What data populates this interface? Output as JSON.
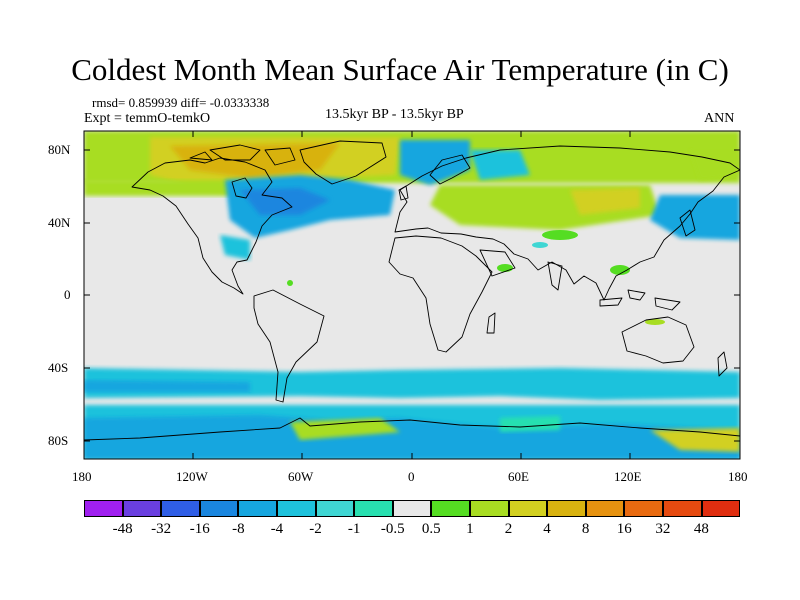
{
  "title": "Coldest Month Mean Surface Air Temperature (in C)",
  "stats": "rmsd= 0.859939 diff= -0.0333338",
  "expt": "Expt = temmO-temkO",
  "period": "13.5kyr BP - 13.5kyr BP",
  "season": "ANN",
  "lat_ticks": [
    "80N",
    "40N",
    "0",
    "40S",
    "80S"
  ],
  "lon_ticks": [
    "180",
    "120W",
    "60W",
    "0",
    "60E",
    "120E",
    "180"
  ],
  "legend": {
    "labels": [
      "-48",
      "-32",
      "-16",
      "-8",
      "-4",
      "-2",
      "-1",
      "-0.5",
      "0.5",
      "1",
      "2",
      "4",
      "8",
      "16",
      "32",
      "48"
    ],
    "colors": [
      "#a020f0",
      "#6a3fe0",
      "#2f5ee6",
      "#1a86df",
      "#16a6df",
      "#1ec2dc",
      "#3fd6d3",
      "#28e0b0",
      "#e8e8e8",
      "#55dd22",
      "#a8dd22",
      "#d2d020",
      "#d8b210",
      "#e69210",
      "#e86a10",
      "#e64a10",
      "#e02e10"
    ]
  },
  "chart_data": {
    "type": "heatmap",
    "title": "Coldest Month Mean Surface Air Temperature (in C)",
    "xlim": [
      -180,
      180
    ],
    "ylim": [
      -90,
      90
    ],
    "contour_levels": [
      -48,
      -32,
      -16,
      -8,
      -4,
      -2,
      -1,
      -0.5,
      0.5,
      1,
      2,
      4,
      8,
      16,
      32,
      48
    ]
  }
}
